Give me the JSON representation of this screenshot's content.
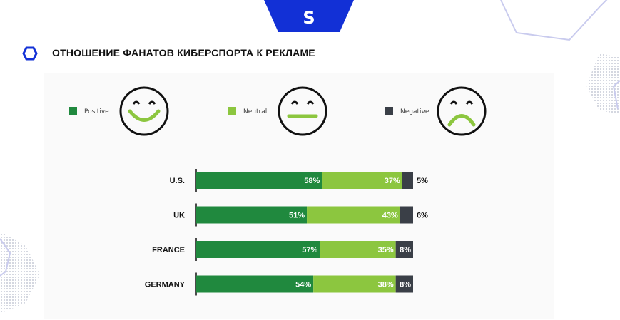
{
  "page": {
    "title": "ОТНОШЕНИЕ ФАНАТОВ КИБЕРСПОРТА К РЕКЛАМЕ",
    "logo_glyph": "S",
    "accent_color": "#1230d6"
  },
  "chart_data": {
    "type": "bar",
    "orientation": "horizontal",
    "stacked": true,
    "percent_stacked": true,
    "categories": [
      "U.S.",
      "UK",
      "FRANCE",
      "GERMANY"
    ],
    "series": [
      {
        "name": "Positive",
        "values": [
          58,
          51,
          57,
          54
        ],
        "labels": [
          "58%",
          "51%",
          "57%",
          "54%"
        ],
        "color": "#20893e"
      },
      {
        "name": "Neutral",
        "values": [
          37,
          43,
          35,
          38
        ],
        "labels": [
          "37%",
          "43%",
          "35%",
          "38%"
        ],
        "color": "#8cc63f"
      },
      {
        "name": "Negative",
        "values": [
          5,
          6,
          8,
          8
        ],
        "labels": [
          "5%",
          "6%",
          "8%",
          "8%"
        ],
        "color": "#3a3f47"
      }
    ],
    "legend": {
      "position": "top",
      "icons": [
        "smile-face-icon",
        "neutral-face-icon",
        "sad-face-icon"
      ]
    },
    "xlim": [
      0,
      100
    ],
    "grid": false
  }
}
